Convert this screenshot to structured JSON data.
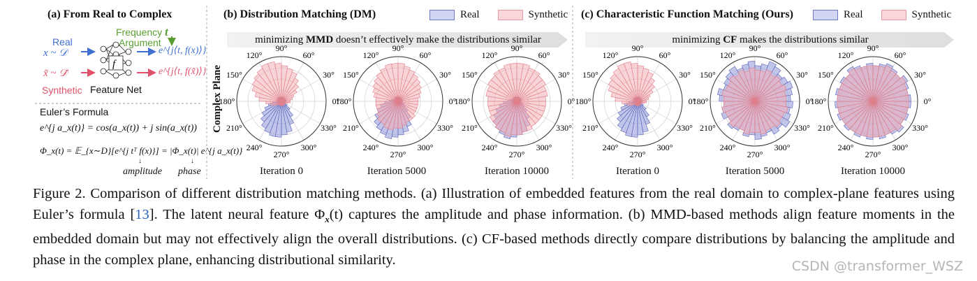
{
  "panel_a": {
    "title": "(a) From Real to Complex",
    "real_label": "Real",
    "real_eq": "x ~ 𝒟",
    "synthetic_label": "Synthetic",
    "synthetic_eq": "x̃ ~ 𝒟̃",
    "freq_label_1": "Frequency",
    "freq_label_2": "Argument",
    "t_label": "t",
    "f_label": "f",
    "net_label": "Feature Net",
    "out_real": "e^{j⟨t, f(x)⟩}",
    "out_syn": "e^{j⟨t, f(x̃)⟩}",
    "euler_title": "Euler’s Formula",
    "euler_eq": "e^{j a_x(t)} = cos(a_x(t)) + j sin(a_x(t))",
    "phi_eq": "Φ_x(t) = 𝔼_{x∼D}[e^{j tᵀ f(x)}] = |Φ_x(t)| e^{j a_x(t)}",
    "amplitude": "amplitude",
    "phase": "phase"
  },
  "panel_b": {
    "title": "(b) Distribution Matching (DM)",
    "banner_pre": "minimizing ",
    "banner_bold": "MMD",
    "banner_post": " doesn’t effectively make the distributions similar"
  },
  "panel_c": {
    "title": "(c) Characteristic Function Matching (Ours)",
    "banner_pre": "minimizing ",
    "banner_bold": "CF",
    "banner_post": " makes the distributions similar"
  },
  "legend": {
    "real": "Real",
    "synthetic": "Synthetic"
  },
  "complex_plane_label": "Complex Plane",
  "angle_labels": [
    "0°",
    "30°",
    "60°",
    "90°",
    "120°",
    "150°",
    "180°",
    "210°",
    "240°",
    "270°",
    "300°",
    "330°"
  ],
  "iterations": [
    "Iteration 0",
    "Iteration 5000",
    "Iteration 10000",
    "Iteration 0",
    "Iteration 5000",
    "Iteration 10000"
  ],
  "colors": {
    "real_fill": "#8f96d8",
    "real_edge": "#5a64b8",
    "syn_fill": "#f3a9b0",
    "syn_edge": "#e07f8a",
    "arrow_blue": "#3f6fd1",
    "arrow_red": "#e0526a",
    "green": "#5a9e32"
  },
  "chart_data": [
    {
      "type": "polar-bar",
      "iteration": "Iteration 0",
      "method": "DM",
      "series": [
        {
          "name": "Real",
          "values": [
            0.1,
            0.1,
            0.1,
            0.1,
            0.1,
            0.1,
            0.1,
            0.1,
            0.1,
            0.1,
            0.1,
            0.1,
            0.1,
            0.1,
            0.1,
            0.1,
            0.1,
            0.1,
            0.2,
            0.3,
            0.4,
            0.5,
            0.6,
            0.7,
            0.75,
            0.8,
            0.8,
            0.75,
            0.7,
            0.55,
            0.4,
            0.25,
            0.15,
            0.1,
            0.1,
            0.1
          ]
        },
        {
          "name": "Synthetic",
          "values": [
            0.2,
            0.25,
            0.3,
            0.4,
            0.5,
            0.6,
            0.7,
            0.75,
            0.8,
            0.85,
            0.9,
            0.9,
            0.85,
            0.8,
            0.75,
            0.7,
            0.6,
            0.5,
            0.35,
            0.25,
            0.2,
            0.15,
            0.1,
            0.1,
            0.1,
            0.1,
            0.1,
            0.1,
            0.1,
            0.1,
            0.1,
            0.1,
            0.1,
            0.1,
            0.15,
            0.2
          ]
        }
      ]
    },
    {
      "type": "polar-bar",
      "iteration": "Iteration 5000",
      "method": "DM",
      "series": [
        {
          "name": "Real",
          "values": [
            0.1,
            0.1,
            0.1,
            0.1,
            0.1,
            0.1,
            0.1,
            0.1,
            0.1,
            0.1,
            0.1,
            0.1,
            0.1,
            0.1,
            0.1,
            0.1,
            0.15,
            0.2,
            0.3,
            0.4,
            0.5,
            0.6,
            0.7,
            0.75,
            0.8,
            0.85,
            0.8,
            0.75,
            0.7,
            0.6,
            0.45,
            0.3,
            0.2,
            0.15,
            0.1,
            0.1
          ]
        },
        {
          "name": "Synthetic",
          "values": [
            0.45,
            0.5,
            0.55,
            0.6,
            0.65,
            0.7,
            0.75,
            0.8,
            0.85,
            0.85,
            0.85,
            0.8,
            0.75,
            0.7,
            0.65,
            0.6,
            0.55,
            0.5,
            0.5,
            0.5,
            0.5,
            0.55,
            0.6,
            0.6,
            0.65,
            0.65,
            0.6,
            0.6,
            0.55,
            0.5,
            0.5,
            0.5,
            0.45,
            0.45,
            0.45,
            0.45
          ]
        }
      ]
    },
    {
      "type": "polar-bar",
      "iteration": "Iteration 10000",
      "method": "DM",
      "series": [
        {
          "name": "Real",
          "values": [
            0.1,
            0.1,
            0.1,
            0.1,
            0.1,
            0.1,
            0.1,
            0.1,
            0.1,
            0.1,
            0.1,
            0.1,
            0.1,
            0.1,
            0.1,
            0.1,
            0.15,
            0.2,
            0.3,
            0.4,
            0.5,
            0.6,
            0.7,
            0.75,
            0.8,
            0.85,
            0.8,
            0.75,
            0.7,
            0.6,
            0.45,
            0.3,
            0.2,
            0.15,
            0.1,
            0.1
          ]
        },
        {
          "name": "Synthetic",
          "values": [
            0.65,
            0.7,
            0.7,
            0.75,
            0.75,
            0.8,
            0.8,
            0.85,
            0.85,
            0.85,
            0.85,
            0.8,
            0.8,
            0.75,
            0.75,
            0.7,
            0.7,
            0.65,
            0.65,
            0.65,
            0.65,
            0.7,
            0.7,
            0.75,
            0.75,
            0.8,
            0.75,
            0.75,
            0.7,
            0.7,
            0.65,
            0.65,
            0.65,
            0.65,
            0.65,
            0.65
          ]
        }
      ]
    },
    {
      "type": "polar-bar",
      "iteration": "Iteration 0",
      "method": "CF",
      "series": [
        {
          "name": "Real",
          "values": [
            0.1,
            0.1,
            0.1,
            0.1,
            0.1,
            0.1,
            0.1,
            0.1,
            0.1,
            0.1,
            0.1,
            0.1,
            0.1,
            0.1,
            0.1,
            0.1,
            0.1,
            0.1,
            0.2,
            0.3,
            0.4,
            0.5,
            0.6,
            0.7,
            0.75,
            0.8,
            0.8,
            0.75,
            0.7,
            0.55,
            0.4,
            0.25,
            0.15,
            0.1,
            0.1,
            0.1
          ]
        },
        {
          "name": "Synthetic",
          "values": [
            0.2,
            0.25,
            0.3,
            0.4,
            0.5,
            0.6,
            0.7,
            0.75,
            0.8,
            0.85,
            0.9,
            0.9,
            0.85,
            0.8,
            0.75,
            0.7,
            0.6,
            0.5,
            0.35,
            0.25,
            0.2,
            0.15,
            0.1,
            0.1,
            0.1,
            0.1,
            0.1,
            0.1,
            0.1,
            0.1,
            0.1,
            0.1,
            0.1,
            0.1,
            0.15,
            0.2
          ]
        }
      ]
    },
    {
      "type": "polar-bar",
      "iteration": "Iteration 5000",
      "method": "CF",
      "series": [
        {
          "name": "Real",
          "values": [
            0.8,
            0.85,
            0.9,
            0.85,
            0.8,
            0.9,
            0.95,
            0.85,
            0.8,
            0.9,
            0.85,
            0.8,
            0.9,
            0.85,
            0.8,
            0.75,
            0.85,
            0.8,
            0.7,
            0.75,
            0.8,
            0.7,
            0.8,
            0.75,
            0.7,
            0.8,
            0.75,
            0.85,
            0.8,
            0.75,
            0.85,
            0.8,
            0.9,
            0.85,
            0.8,
            0.85
          ]
        },
        {
          "name": "Synthetic",
          "values": [
            0.7,
            0.7,
            0.75,
            0.7,
            0.75,
            0.7,
            0.75,
            0.7,
            0.7,
            0.75,
            0.7,
            0.75,
            0.7,
            0.75,
            0.7,
            0.7,
            0.75,
            0.7,
            0.7,
            0.75,
            0.7,
            0.7,
            0.75,
            0.7,
            0.7,
            0.75,
            0.7,
            0.7,
            0.75,
            0.7,
            0.7,
            0.75,
            0.7,
            0.7,
            0.75,
            0.7
          ]
        }
      ]
    },
    {
      "type": "polar-bar",
      "iteration": "Iteration 10000",
      "method": "CF",
      "series": [
        {
          "name": "Real",
          "values": [
            0.85,
            0.8,
            0.85,
            0.9,
            0.8,
            0.85,
            0.9,
            0.85,
            0.8,
            0.85,
            0.8,
            0.85,
            0.9,
            0.8,
            0.85,
            0.8,
            0.85,
            0.8,
            0.85,
            0.8,
            0.85,
            0.8,
            0.85,
            0.8,
            0.85,
            0.8,
            0.85,
            0.8,
            0.85,
            0.8,
            0.85,
            0.9,
            0.8,
            0.85,
            0.8,
            0.85
          ]
        },
        {
          "name": "Synthetic",
          "values": [
            0.8,
            0.8,
            0.8,
            0.85,
            0.8,
            0.8,
            0.85,
            0.8,
            0.8,
            0.8,
            0.8,
            0.8,
            0.85,
            0.8,
            0.8,
            0.8,
            0.8,
            0.8,
            0.8,
            0.8,
            0.8,
            0.8,
            0.8,
            0.8,
            0.8,
            0.8,
            0.8,
            0.8,
            0.8,
            0.8,
            0.8,
            0.85,
            0.8,
            0.8,
            0.8,
            0.8
          ]
        }
      ]
    }
  ],
  "caption": {
    "text1": "Figure 2. Comparison of different distribution matching methods. (a) Illustration of embedded features from the real domain to complex-plane features using Euler’s formula [",
    "ref": "13",
    "text2": "]. The latent neural feature Φ",
    "sub": "x",
    "text3": "(t) captures the amplitude and phase information. (b) MMD-based methods align feature moments in the embedded domain but may not effectively align the overall distributions. (c) CF-based methods directly compare distributions by balancing the amplitude and phase in the complex plane, enhancing distributional similarity."
  },
  "watermark": "CSDN @transformer_WSZ"
}
